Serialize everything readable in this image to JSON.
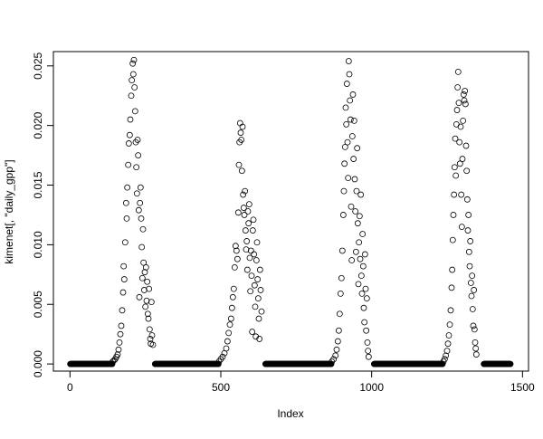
{
  "chart_data": {
    "type": "scatter",
    "title": "",
    "xlabel": "Index",
    "ylabel": "kimenet[, \"daily_gpp\"]",
    "xlim": [
      -55,
      1520
    ],
    "ylim": [
      -0.0006,
      0.0262
    ],
    "xticks": [
      0,
      500,
      1000,
      1500
    ],
    "xtick_labels": [
      "0",
      "500",
      "1000",
      "1500"
    ],
    "yticks": [
      0,
      0.005,
      0.01,
      0.015,
      0.02,
      0.025
    ],
    "ytick_labels": [
      "0.000",
      "0.005",
      "0.010",
      "0.015",
      "0.020",
      "0.025"
    ],
    "grid": false,
    "marker": "open-circle",
    "color": "#000000",
    "zero_runs": [
      [
        1,
        140
      ],
      [
        282,
        492
      ],
      [
        648,
        866
      ],
      [
        1008,
        1235
      ],
      [
        1372,
        1460
      ]
    ],
    "points": [
      [
        142,
        0.0002
      ],
      [
        146,
        0.0003
      ],
      [
        150,
        0.0004
      ],
      [
        154,
        0.0006
      ],
      [
        158,
        0.0008
      ],
      [
        161,
        0.0012
      ],
      [
        164,
        0.0018
      ],
      [
        167,
        0.0025
      ],
      [
        170,
        0.0032
      ],
      [
        173,
        0.0045
      ],
      [
        176,
        0.006
      ],
      [
        178,
        0.0082
      ],
      [
        180,
        0.0071
      ],
      [
        183,
        0.0102
      ],
      [
        186,
        0.0135
      ],
      [
        188,
        0.0122
      ],
      [
        190,
        0.0148
      ],
      [
        193,
        0.0167
      ],
      [
        195,
        0.0185
      ],
      [
        198,
        0.0192
      ],
      [
        200,
        0.0205
      ],
      [
        203,
        0.0225
      ],
      [
        205,
        0.0238
      ],
      [
        208,
        0.0252
      ],
      [
        210,
        0.0243
      ],
      [
        212,
        0.0255
      ],
      [
        214,
        0.0232
      ],
      [
        216,
        0.0212
      ],
      [
        218,
        0.0186
      ],
      [
        220,
        0.0165
      ],
      [
        222,
        0.0143
      ],
      [
        224,
        0.0188
      ],
      [
        226,
        0.0175
      ],
      [
        228,
        0.0129
      ],
      [
        230,
        0.0056
      ],
      [
        232,
        0.0135
      ],
      [
        234,
        0.0148
      ],
      [
        236,
        0.0122
      ],
      [
        238,
        0.0098
      ],
      [
        240,
        0.0072
      ],
      [
        242,
        0.0113
      ],
      [
        244,
        0.0085
      ],
      [
        246,
        0.0062
      ],
      [
        248,
        0.0077
      ],
      [
        250,
        0.0048
      ],
      [
        252,
        0.0081
      ],
      [
        254,
        0.0053
      ],
      [
        256,
        0.0069
      ],
      [
        258,
        0.0042
      ],
      [
        260,
        0.0038
      ],
      [
        262,
        0.0063
      ],
      [
        264,
        0.0029
      ],
      [
        266,
        0.0021
      ],
      [
        268,
        0.0017
      ],
      [
        270,
        0.0052
      ],
      [
        272,
        0.0024
      ],
      [
        275,
        0.0016
      ],
      [
        494,
        0.0002
      ],
      [
        500,
        0.0004
      ],
      [
        506,
        0.0006
      ],
      [
        512,
        0.0009
      ],
      [
        518,
        0.0013
      ],
      [
        522,
        0.0019
      ],
      [
        526,
        0.0026
      ],
      [
        530,
        0.0033
      ],
      [
        534,
        0.0038
      ],
      [
        537,
        0.0047
      ],
      [
        540,
        0.0056
      ],
      [
        543,
        0.0063
      ],
      [
        546,
        0.0081
      ],
      [
        549,
        0.0099
      ],
      [
        552,
        0.0095
      ],
      [
        555,
        0.0088
      ],
      [
        558,
        0.0127
      ],
      [
        560,
        0.0167
      ],
      [
        562,
        0.0186
      ],
      [
        564,
        0.0202
      ],
      [
        566,
        0.0194
      ],
      [
        568,
        0.0188
      ],
      [
        570,
        0.0162
      ],
      [
        572,
        0.0199
      ],
      [
        574,
        0.0142
      ],
      [
        576,
        0.0131
      ],
      [
        578,
        0.0125
      ],
      [
        580,
        0.0145
      ],
      [
        582,
        0.0112
      ],
      [
        584,
        0.0096
      ],
      [
        586,
        0.0103
      ],
      [
        588,
        0.0079
      ],
      [
        590,
        0.0128
      ],
      [
        592,
        0.0118
      ],
      [
        594,
        0.0134
      ],
      [
        596,
        0.0089
      ],
      [
        598,
        0.0061
      ],
      [
        600,
        0.0095
      ],
      [
        602,
        0.0074
      ],
      [
        604,
        0.0027
      ],
      [
        606,
        0.0112
      ],
      [
        608,
        0.0121
      ],
      [
        610,
        0.0092
      ],
      [
        612,
        0.0066
      ],
      [
        614,
        0.0048
      ],
      [
        616,
        0.0023
      ],
      [
        618,
        0.0087
      ],
      [
        620,
        0.0102
      ],
      [
        622,
        0.0071
      ],
      [
        624,
        0.0055
      ],
      [
        626,
        0.0038
      ],
      [
        628,
        0.0021
      ],
      [
        630,
        0.0079
      ],
      [
        632,
        0.0062
      ],
      [
        635,
        0.0044
      ],
      [
        868,
        0.0002
      ],
      [
        874,
        0.0004
      ],
      [
        880,
        0.0007
      ],
      [
        884,
        0.0012
      ],
      [
        888,
        0.0019
      ],
      [
        891,
        0.0028
      ],
      [
        894,
        0.0042
      ],
      [
        897,
        0.0059
      ],
      [
        900,
        0.0072
      ],
      [
        903,
        0.0095
      ],
      [
        906,
        0.0125
      ],
      [
        908,
        0.0145
      ],
      [
        910,
        0.0168
      ],
      [
        912,
        0.0182
      ],
      [
        914,
        0.0215
      ],
      [
        916,
        0.0201
      ],
      [
        918,
        0.0235
      ],
      [
        920,
        0.0186
      ],
      [
        922,
        0.0156
      ],
      [
        924,
        0.0254
      ],
      [
        926,
        0.0243
      ],
      [
        928,
        0.0221
      ],
      [
        930,
        0.0205
      ],
      [
        932,
        0.0132
      ],
      [
        934,
        0.0087
      ],
      [
        936,
        0.0191
      ],
      [
        938,
        0.0226
      ],
      [
        940,
        0.0172
      ],
      [
        942,
        0.0204
      ],
      [
        944,
        0.0155
      ],
      [
        946,
        0.0128
      ],
      [
        948,
        0.0094
      ],
      [
        950,
        0.0145
      ],
      [
        952,
        0.0181
      ],
      [
        954,
        0.0118
      ],
      [
        956,
        0.0067
      ],
      [
        958,
        0.0102
      ],
      [
        960,
        0.0124
      ],
      [
        962,
        0.0088
      ],
      [
        964,
        0.0142
      ],
      [
        966,
        0.0074
      ],
      [
        968,
        0.0059
      ],
      [
        970,
        0.0109
      ],
      [
        972,
        0.0082
      ],
      [
        974,
        0.0047
      ],
      [
        976,
        0.0035
      ],
      [
        978,
        0.0092
      ],
      [
        980,
        0.0063
      ],
      [
        982,
        0.0028
      ],
      [
        984,
        0.0055
      ],
      [
        986,
        0.0018
      ],
      [
        988,
        0.0011
      ],
      [
        990,
        0.0006
      ],
      [
        1238,
        0.0002
      ],
      [
        1242,
        0.0004
      ],
      [
        1246,
        0.0007
      ],
      [
        1250,
        0.0011
      ],
      [
        1253,
        0.0017
      ],
      [
        1256,
        0.0024
      ],
      [
        1259,
        0.0033
      ],
      [
        1262,
        0.0045
      ],
      [
        1265,
        0.0064
      ],
      [
        1267,
        0.0079
      ],
      [
        1269,
        0.0104
      ],
      [
        1271,
        0.0125
      ],
      [
        1273,
        0.0142
      ],
      [
        1275,
        0.0165
      ],
      [
        1277,
        0.0189
      ],
      [
        1279,
        0.0158
      ],
      [
        1281,
        0.0201
      ],
      [
        1283,
        0.0213
      ],
      [
        1285,
        0.0232
      ],
      [
        1287,
        0.0245
      ],
      [
        1289,
        0.0219
      ],
      [
        1291,
        0.0186
      ],
      [
        1293,
        0.0168
      ],
      [
        1295,
        0.0199
      ],
      [
        1297,
        0.0142
      ],
      [
        1299,
        0.0115
      ],
      [
        1301,
        0.0172
      ],
      [
        1303,
        0.0204
      ],
      [
        1305,
        0.0226
      ],
      [
        1307,
        0.0221
      ],
      [
        1309,
        0.0229
      ],
      [
        1311,
        0.0218
      ],
      [
        1313,
        0.0183
      ],
      [
        1315,
        0.0162
      ],
      [
        1317,
        0.0138
      ],
      [
        1319,
        0.0112
      ],
      [
        1321,
        0.0125
      ],
      [
        1323,
        0.0094
      ],
      [
        1325,
        0.0082
      ],
      [
        1327,
        0.0103
      ],
      [
        1329,
        0.0068
      ],
      [
        1331,
        0.0057
      ],
      [
        1333,
        0.0074
      ],
      [
        1335,
        0.0046
      ],
      [
        1337,
        0.0032
      ],
      [
        1339,
        0.0062
      ],
      [
        1341,
        0.0029
      ],
      [
        1343,
        0.0018
      ],
      [
        1345,
        0.0013
      ],
      [
        1347,
        0.0008
      ]
    ]
  }
}
